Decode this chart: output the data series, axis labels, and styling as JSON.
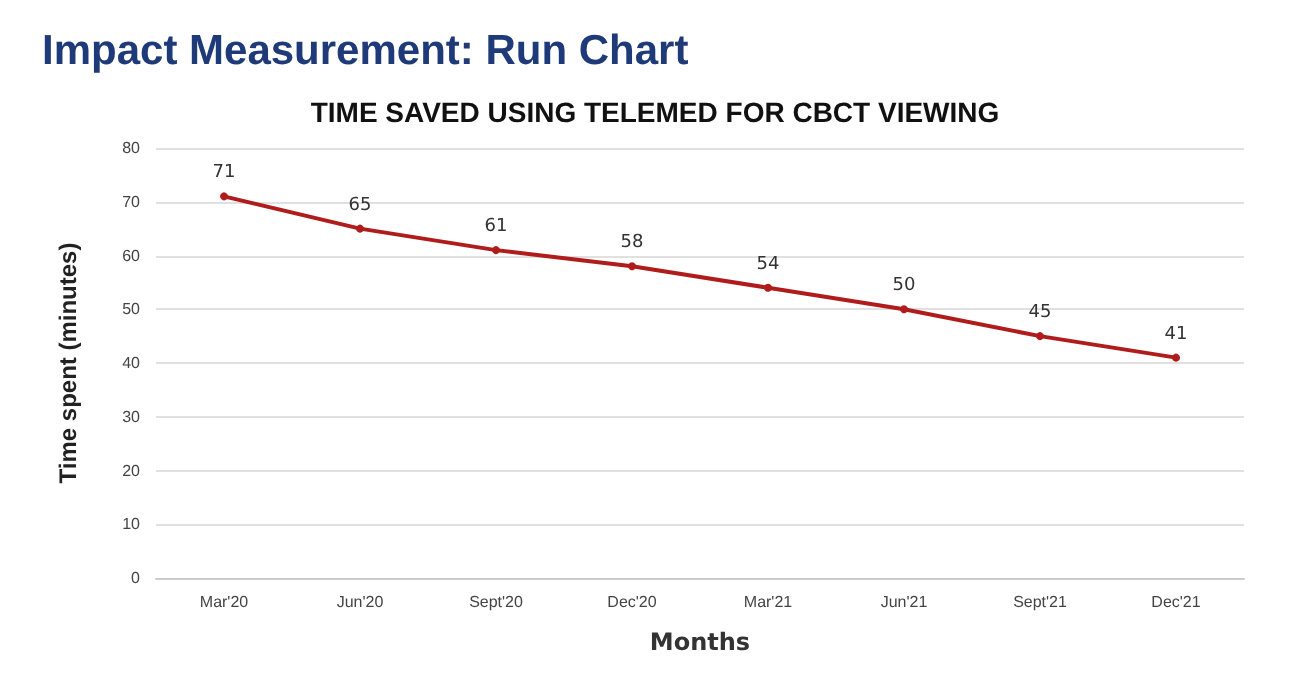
{
  "chart_data": {
    "type": "line",
    "title": "Impact Measurement: Run Chart",
    "subtitle": "TIME SAVED USING TELEMED FOR CBCT VIEWING",
    "xlabel": "Months",
    "ylabel": "Time spent (minutes)",
    "categories": [
      "Mar'20",
      "Jun'20",
      "Sept'20",
      "Dec'20",
      "Mar'21",
      "Jun'21",
      "Sept'21",
      "Dec'21"
    ],
    "series": [
      {
        "color": "#b01c1c",
        "values": [
          71,
          65,
          61,
          58,
          54,
          50,
          45,
          41
        ]
      }
    ],
    "ylim": [
      0,
      80
    ],
    "yticks": [
      0,
      10,
      20,
      30,
      40,
      50,
      60,
      70,
      80
    ],
    "grid": "y",
    "marker": "circle",
    "line_style": "solid",
    "data_labels": true
  }
}
